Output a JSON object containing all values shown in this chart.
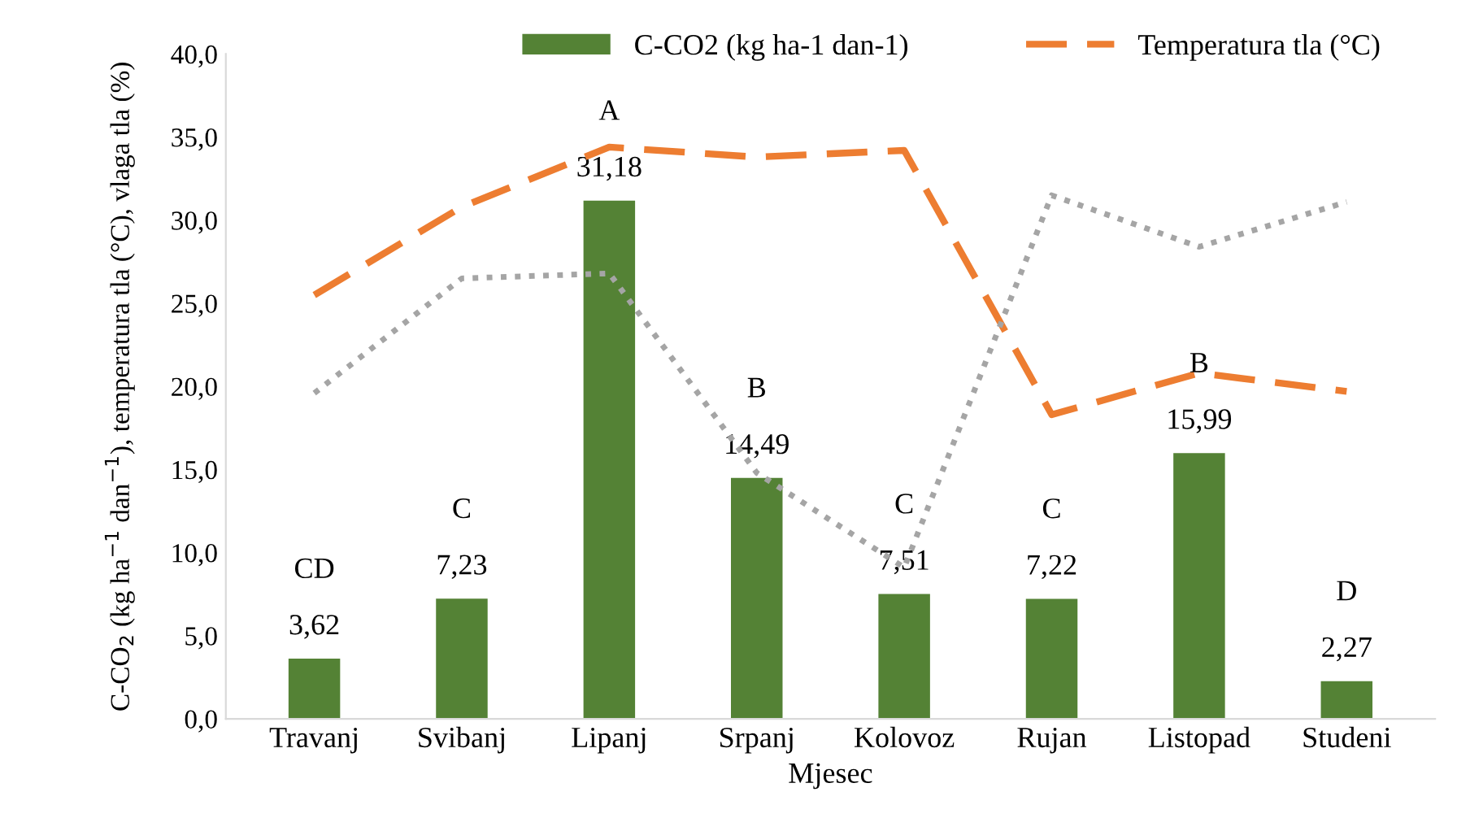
{
  "chart_data": {
    "type": "bar",
    "categories": [
      "Travanj",
      "Svibanj",
      "Lipanj",
      "Srpanj",
      "Kolovoz",
      "Rujan",
      "Listopad",
      "Studeni"
    ],
    "xlabel": "Mjesec",
    "ylabel": "C-CO$_{2}$ (kg ha$^{−1}$ dan$^{−1}$), temperatura tla (°C), vlaga tla (%)",
    "series": [
      {
        "name": "C-CO2 (kg ha-1 dan-1)",
        "color": "#548235",
        "values": [
          3.62,
          7.23,
          31.18,
          14.49,
          7.51,
          7.22,
          15.99,
          2.27
        ],
        "value_labels": [
          "3,62",
          "7,23",
          "31,18",
          "14,49",
          "7,51",
          "7,22",
          "15,99",
          "2,27"
        ]
      },
      {
        "name": "Temperatura tla (°C)",
        "type": "line",
        "line_style": "dashed",
        "color": "#ed7d31",
        "values": [
          25.5,
          30.8,
          34.4,
          33.8,
          34.2,
          18.3,
          20.8,
          19.7
        ]
      },
      {
        "type": "line",
        "line_style": "dotted",
        "color": "#a5a5a5",
        "values": [
          19.6,
          26.5,
          26.8,
          14.8,
          9.1,
          31.5,
          28.4,
          31.1
        ]
      }
    ],
    "annotations": [
      {
        "text": "CD",
        "x": "Travanj",
        "y": 3.62
      },
      {
        "text": "C",
        "x": "Svibanj",
        "y": 7.23
      },
      {
        "text": "A",
        "x": "Lipanj",
        "y": 31.18
      },
      {
        "text": "B",
        "x": "Srpanj",
        "y": 14.49
      },
      {
        "text": "C",
        "x": "Kolovoz",
        "y": 7.51
      },
      {
        "text": "C",
        "x": "Rujan",
        "y": 7.22
      },
      {
        "text": "B",
        "x": "Listopad",
        "y": 15.99
      },
      {
        "text": "D",
        "x": "Studeni",
        "y": 2.27
      }
    ],
    "ylim": [
      0,
      40
    ],
    "yticks": [
      {
        "value": 0,
        "label": "0,0"
      },
      {
        "value": 5,
        "label": "5,0"
      },
      {
        "value": 10,
        "label": "10,0"
      },
      {
        "value": 15,
        "label": "15,0"
      },
      {
        "value": 20,
        "label": "20,0"
      },
      {
        "value": 25,
        "label": "25,0"
      },
      {
        "value": 30,
        "label": "30,0"
      },
      {
        "value": 35,
        "label": "35,0"
      },
      {
        "value": 40,
        "label": "40,0"
      }
    ],
    "grid": false,
    "legend": "top"
  }
}
